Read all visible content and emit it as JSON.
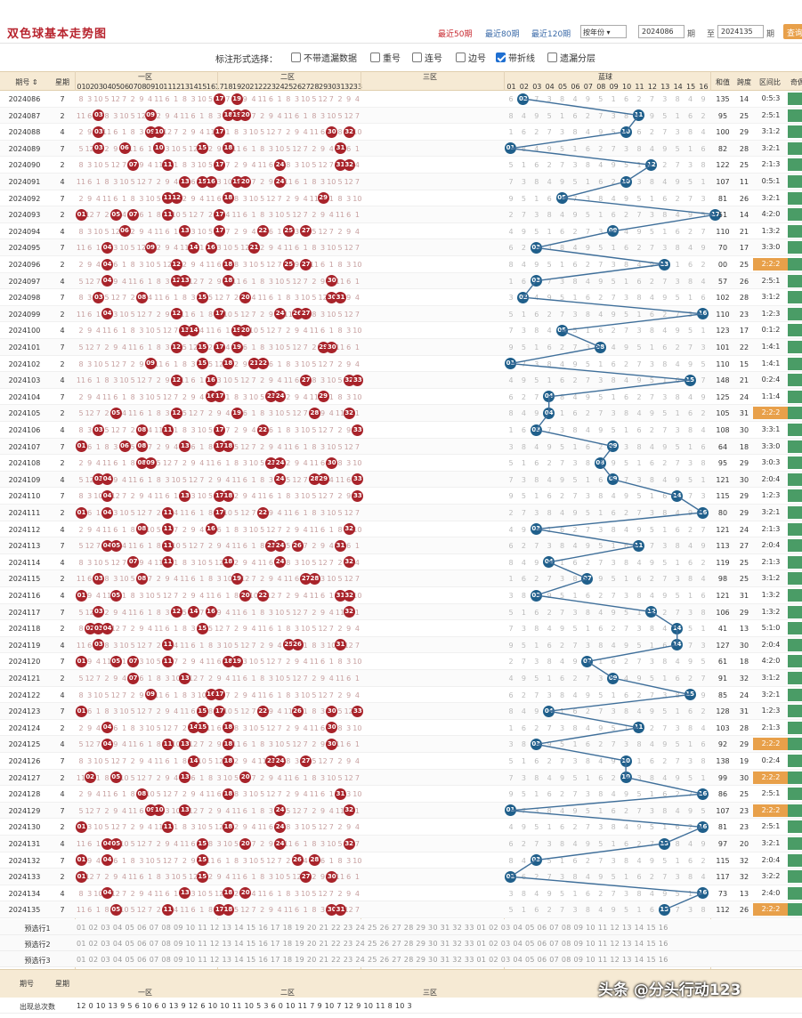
{
  "header": {
    "title": "双色球基本走势图",
    "links": [
      "最近50期",
      "最近80期",
      "最近120期"
    ],
    "year_select": "按年份",
    "from_issue": "2024086",
    "to_label": "至",
    "to_issue": "2024135",
    "issue_unit": "期",
    "query_button": "查询"
  },
  "options": {
    "label": "标注形式选择：",
    "items": [
      {
        "label": "不带遗漏数据",
        "checked": false
      },
      {
        "label": "重号",
        "checked": false
      },
      {
        "label": "连号",
        "checked": false
      },
      {
        "label": "边号",
        "checked": false
      },
      {
        "label": "带折线",
        "checked": true
      },
      {
        "label": "遗漏分层",
        "checked": false
      }
    ]
  },
  "columns": {
    "issue": "期号",
    "week": "星期",
    "zone1": "一区",
    "zone2": "二区",
    "zone3": "三区",
    "blue": "蓝球",
    "sum": "和值",
    "span": "跨度",
    "ratio": "区间比",
    "odd": "奇偶"
  },
  "rows": [
    {
      "issue": "2024086",
      "week": "7",
      "red": [
        19,
        17
      ],
      "blue": 2,
      "sum": "135",
      "span": "14",
      "ratio": "0:5:3"
    },
    {
      "issue": "2024087",
      "week": "2",
      "red": [
        3,
        9,
        18,
        19,
        20
      ],
      "blue": 11,
      "sum": "95",
      "span": "25",
      "ratio": "2:5:1"
    },
    {
      "issue": "2024088",
      "week": "4",
      "red": [
        3,
        9,
        10,
        17,
        30,
        32
      ],
      "blue": 10,
      "sum": "100",
      "span": "29",
      "ratio": "3:1:2"
    },
    {
      "issue": "2024089",
      "week": "7",
      "red": [
        3,
        6,
        10,
        15,
        18,
        31
      ],
      "blue": 1,
      "sum": "82",
      "span": "28",
      "ratio": "3:2:1"
    },
    {
      "issue": "2024090",
      "week": "2",
      "red": [
        7,
        11,
        17,
        24,
        31,
        32
      ],
      "blue": 12,
      "sum": "122",
      "span": "25",
      "ratio": "2:1:3"
    },
    {
      "issue": "2024091",
      "week": "4",
      "red": [
        13,
        15,
        16,
        19,
        20,
        24
      ],
      "blue": 10,
      "sum": "107",
      "span": "11",
      "ratio": "0:5:1"
    },
    {
      "issue": "2024092",
      "week": "7",
      "red": [
        11,
        12,
        18,
        29
      ],
      "blue": 5,
      "sum": "81",
      "span": "26",
      "ratio": "3:2:1"
    },
    {
      "issue": "2024093",
      "week": "2",
      "red": [
        1,
        5,
        7,
        11,
        17
      ],
      "blue": 17,
      "sum": "51",
      "span": "14",
      "ratio": "4:2:0"
    },
    {
      "issue": "2024094",
      "week": "4",
      "red": [
        6,
        13,
        17,
        22,
        25,
        27
      ],
      "blue": 9,
      "sum": "110",
      "span": "21",
      "ratio": "1:3:2"
    },
    {
      "issue": "2024095",
      "week": "7",
      "red": [
        4,
        9,
        14,
        16,
        21
      ],
      "blue": 3,
      "sum": "70",
      "span": "17",
      "ratio": "3:3:0"
    },
    {
      "issue": "2024096",
      "week": "2",
      "red": [
        4,
        12,
        18,
        25,
        27
      ],
      "blue": 13,
      "sum": "00",
      "span": "25",
      "ratio": "2:2:2"
    },
    {
      "issue": "2024097",
      "week": "4",
      "red": [
        4,
        12,
        13,
        18,
        30
      ],
      "blue": 3,
      "sum": "57",
      "span": "26",
      "ratio": "2:5:1"
    },
    {
      "issue": "2024098",
      "week": "7",
      "red": [
        3,
        8,
        15,
        20,
        30,
        31
      ],
      "blue": 2,
      "sum": "102",
      "span": "28",
      "ratio": "3:1:2"
    },
    {
      "issue": "2024099",
      "week": "2",
      "red": [
        4,
        12,
        17,
        24,
        26,
        27
      ],
      "blue": 16,
      "sum": "110",
      "span": "23",
      "ratio": "1:2:3"
    },
    {
      "issue": "2024100",
      "week": "4",
      "red": [
        13,
        14,
        19,
        20
      ],
      "blue": 5,
      "sum": "123",
      "span": "17",
      "ratio": "0:1:2"
    },
    {
      "issue": "2024101",
      "week": "7",
      "red": [
        12,
        15,
        17,
        19,
        29,
        30
      ],
      "blue": 8,
      "sum": "101",
      "span": "22",
      "ratio": "1:4:1"
    },
    {
      "issue": "2024102",
      "week": "2",
      "red": [
        9,
        15,
        18,
        21,
        22
      ],
      "blue": 1,
      "sum": "110",
      "span": "15",
      "ratio": "1:4:1"
    },
    {
      "issue": "2024103",
      "week": "4",
      "red": [
        12,
        16,
        27,
        32,
        33
      ],
      "blue": 15,
      "sum": "148",
      "span": "21",
      "ratio": "0:2:4"
    },
    {
      "issue": "2024104",
      "week": "7",
      "red": [
        16,
        17,
        23,
        24,
        29
      ],
      "blue": 4,
      "sum": "125",
      "span": "24",
      "ratio": "1:1:4"
    },
    {
      "issue": "2024105",
      "week": "2",
      "red": [
        5,
        12,
        19,
        28,
        32
      ],
      "blue": 4,
      "sum": "105",
      "span": "31",
      "ratio": "2:2:2"
    },
    {
      "issue": "2024106",
      "week": "4",
      "red": [
        3,
        8,
        11,
        17,
        22,
        33
      ],
      "blue": 3,
      "sum": "108",
      "span": "30",
      "ratio": "3:3:1"
    },
    {
      "issue": "2024107",
      "week": "7",
      "red": [
        1,
        6,
        8,
        13,
        17,
        18
      ],
      "blue": 9,
      "sum": "64",
      "span": "18",
      "ratio": "3:3:0"
    },
    {
      "issue": "2024108",
      "week": "2",
      "red": [
        8,
        9,
        23,
        24,
        30
      ],
      "blue": 8,
      "sum": "95",
      "span": "29",
      "ratio": "3:0:3"
    },
    {
      "issue": "2024109",
      "week": "4",
      "red": [
        3,
        4,
        24,
        28,
        29,
        33
      ],
      "blue": 9,
      "sum": "121",
      "span": "30",
      "ratio": "2:0:4"
    },
    {
      "issue": "2024110",
      "week": "7",
      "red": [
        4,
        13,
        17,
        18,
        33
      ],
      "blue": 14,
      "sum": "115",
      "span": "29",
      "ratio": "1:2:3"
    },
    {
      "issue": "2024111",
      "week": "2",
      "red": [
        1,
        4,
        11,
        17,
        22
      ],
      "blue": 16,
      "sum": "80",
      "span": "29",
      "ratio": "3:2:1"
    },
    {
      "issue": "2024112",
      "week": "4",
      "red": [
        8,
        11,
        16,
        32
      ],
      "blue": 3,
      "sum": "121",
      "span": "24",
      "ratio": "2:1:3"
    },
    {
      "issue": "2024113",
      "week": "7",
      "red": [
        4,
        5,
        11,
        23,
        24,
        26,
        31
      ],
      "blue": 11,
      "sum": "113",
      "span": "27",
      "ratio": "2:0:4"
    },
    {
      "issue": "2024114",
      "week": "4",
      "red": [
        7,
        11,
        18,
        24,
        32
      ],
      "blue": 4,
      "sum": "119",
      "span": "25",
      "ratio": "2:1:3"
    },
    {
      "issue": "2024115",
      "week": "2",
      "red": [
        3,
        8,
        19,
        27,
        28
      ],
      "blue": 7,
      "sum": "98",
      "span": "25",
      "ratio": "3:1:2"
    },
    {
      "issue": "2024116",
      "week": "4",
      "red": [
        1,
        5,
        20,
        22,
        31,
        32
      ],
      "blue": 3,
      "sum": "121",
      "span": "31",
      "ratio": "1:3:2"
    },
    {
      "issue": "2024117",
      "week": "7",
      "red": [
        3,
        12,
        14,
        16,
        32
      ],
      "blue": 12,
      "sum": "106",
      "span": "29",
      "ratio": "1:3:2"
    },
    {
      "issue": "2024118",
      "week": "2",
      "red": [
        2,
        3,
        4,
        15
      ],
      "blue": 14,
      "sum": "41",
      "span": "13",
      "ratio": "5:1:0"
    },
    {
      "issue": "2024119",
      "week": "4",
      "red": [
        3,
        11,
        25,
        26,
        31
      ],
      "blue": 14,
      "sum": "127",
      "span": "30",
      "ratio": "2:0:4"
    },
    {
      "issue": "2024120",
      "week": "7",
      "red": [
        1,
        5,
        7,
        11,
        18,
        19
      ],
      "blue": 7,
      "sum": "61",
      "span": "18",
      "ratio": "4:2:0"
    },
    {
      "issue": "2024121",
      "week": "2",
      "red": [
        7,
        13
      ],
      "blue": 9,
      "sum": "91",
      "span": "32",
      "ratio": "3:1:2"
    },
    {
      "issue": "2024122",
      "week": "4",
      "red": [
        9,
        16,
        17
      ],
      "blue": 15,
      "sum": "85",
      "span": "24",
      "ratio": "3:2:1"
    },
    {
      "issue": "2024123",
      "week": "7",
      "red": [
        1,
        15,
        17,
        22,
        26,
        30,
        33
      ],
      "blue": 4,
      "sum": "128",
      "span": "31",
      "ratio": "1:2:3"
    },
    {
      "issue": "2024124",
      "week": "2",
      "red": [
        4,
        14,
        15,
        18,
        30
      ],
      "blue": 11,
      "sum": "103",
      "span": "28",
      "ratio": "2:1:3"
    },
    {
      "issue": "2024125",
      "week": "4",
      "red": [
        4,
        11,
        13,
        18,
        30
      ],
      "blue": 3,
      "sum": "92",
      "span": "29",
      "ratio": "2:2:2"
    },
    {
      "issue": "2024126",
      "week": "7",
      "red": [
        14,
        18,
        23,
        24,
        27
      ],
      "blue": 10,
      "sum": "138",
      "span": "19",
      "ratio": "0:2:4"
    },
    {
      "issue": "2024127",
      "week": "2",
      "red": [
        2,
        5,
        13,
        20
      ],
      "blue": 10,
      "sum": "99",
      "span": "30",
      "ratio": "2:2:2"
    },
    {
      "issue": "2024128",
      "week": "4",
      "red": [
        8,
        18,
        31
      ],
      "blue": 16,
      "sum": "86",
      "span": "25",
      "ratio": "2:5:1"
    },
    {
      "issue": "2024129",
      "week": "7",
      "red": [
        9,
        10,
        13,
        24,
        32
      ],
      "blue": 1,
      "sum": "107",
      "span": "23",
      "ratio": "2:2:2"
    },
    {
      "issue": "2024130",
      "week": "2",
      "red": [
        1,
        11,
        18,
        24
      ],
      "blue": 16,
      "sum": "81",
      "span": "23",
      "ratio": "2:5:1"
    },
    {
      "issue": "2024131",
      "week": "4",
      "red": [
        4,
        5,
        15,
        20,
        24,
        32
      ],
      "blue": 13,
      "sum": "97",
      "span": "20",
      "ratio": "3:2:1"
    },
    {
      "issue": "2024132",
      "week": "7",
      "red": [
        1,
        4,
        15,
        26,
        28
      ],
      "blue": 3,
      "sum": "115",
      "span": "32",
      "ratio": "2:0:4"
    },
    {
      "issue": "2024133",
      "week": "2",
      "red": [
        1,
        15,
        27,
        30
      ],
      "blue": 1,
      "sum": "117",
      "span": "32",
      "ratio": "3:2:2"
    },
    {
      "issue": "2024134",
      "week": "4",
      "red": [
        4,
        13,
        18,
        20
      ],
      "blue": 16,
      "sum": "73",
      "span": "13",
      "ratio": "2:4:0"
    },
    {
      "issue": "2024135",
      "week": "7",
      "red": [
        5,
        11,
        17,
        18,
        30,
        31
      ],
      "blue": 13,
      "sum": "112",
      "span": "26",
      "ratio": "2:2:2"
    }
  ],
  "bottom": {
    "rows": [
      {
        "label": "预选行1"
      },
      {
        "label": "预选行2"
      },
      {
        "label": "预选行3"
      }
    ],
    "footer_issue": "期号",
    "footer_week": "星期",
    "footer_zone1": "一区",
    "footer_zone2": "二区",
    "footer_zone3": "三区",
    "stats_label": "出现总次数",
    "stats_values": "12 0 10 13 9 5 6 10 6 0 13 9 12 6 10 10 11 10 5 3 6 0 10 11 7 9 10 7 12 9 10 11 8 10 3"
  },
  "watermark": "头条 @分头行动123",
  "colors": {
    "red_ball": "#a8232a",
    "blue_ball": "#1f5f8b",
    "accent": "#e8a04a",
    "header_bg": "#f6ead4"
  }
}
